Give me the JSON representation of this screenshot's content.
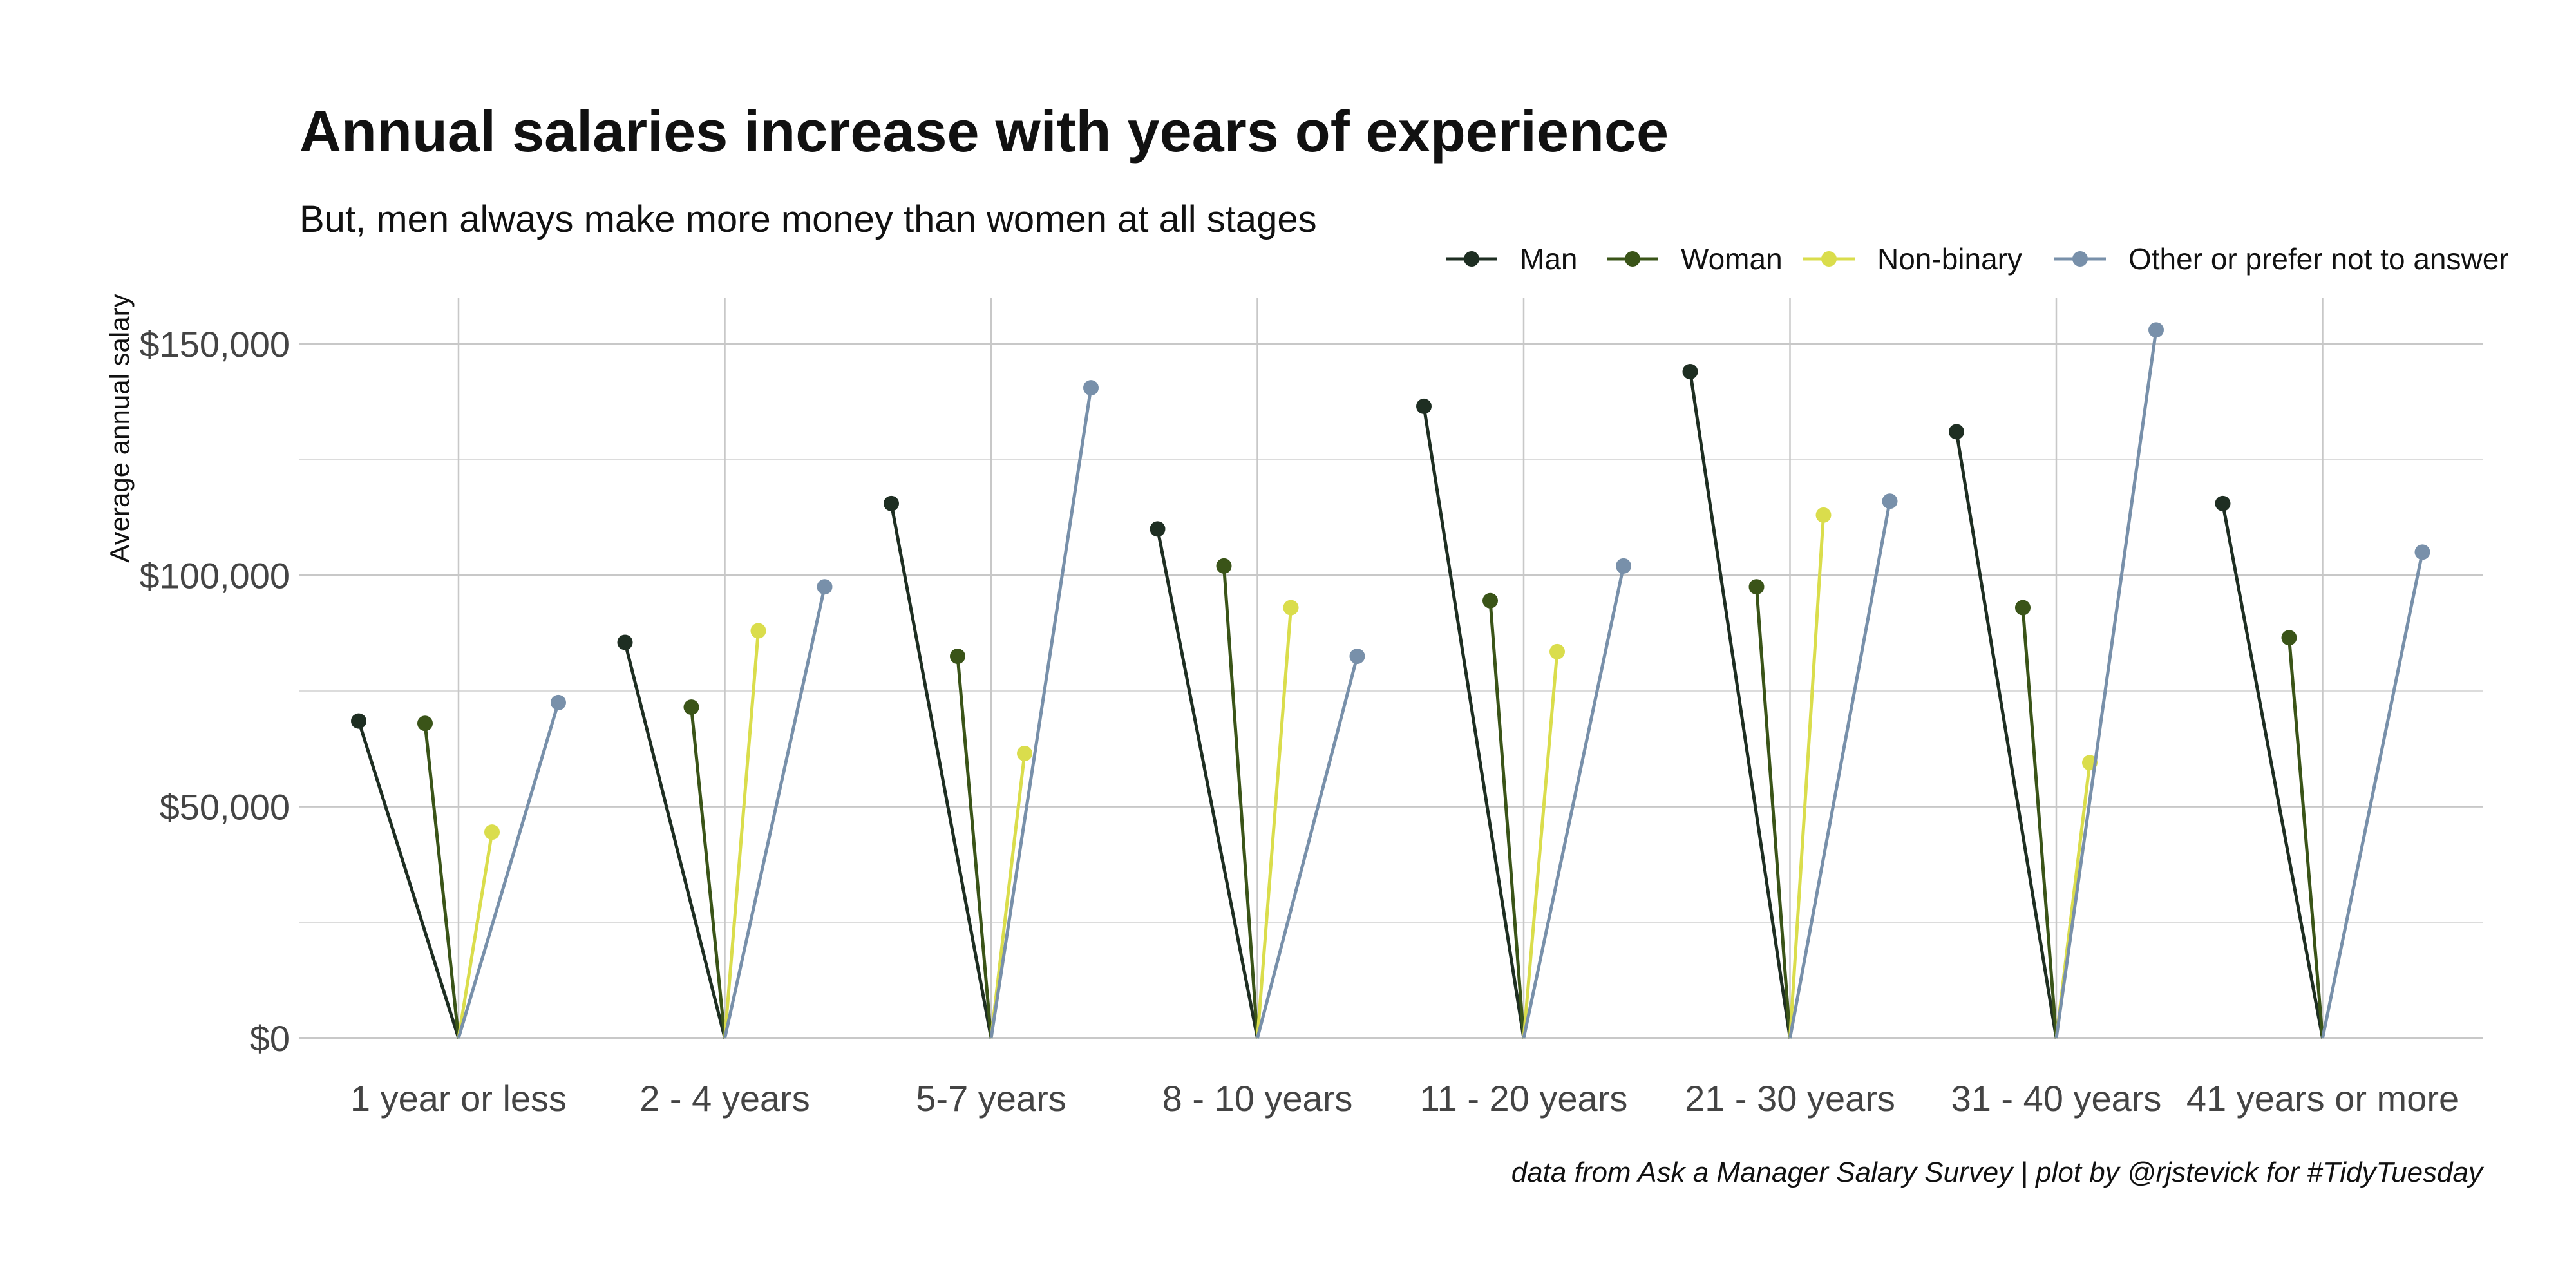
{
  "chart_data": {
    "type": "line",
    "title": "Annual salaries increase with years of experience",
    "subtitle": "But, men always make more money than women at all stages",
    "ylabel": "Average annual salary",
    "xlabel": "",
    "caption": "data from Ask a Manager Salary Survey | plot by @rjstevick for #TidyTuesday",
    "categories": [
      "1 year or less",
      "2 - 4 years",
      "5-7 years",
      "8 - 10 years",
      "11 - 20 years",
      "21 - 30 years",
      "31 - 40 years",
      "41 years or more"
    ],
    "ylim": [
      0,
      160000
    ],
    "yticks": [
      0,
      50000,
      100000,
      150000
    ],
    "ytick_labels": [
      "$0",
      "$50,000",
      "$100,000",
      "$150,000"
    ],
    "grid": true,
    "legend_position": "top-right",
    "series": [
      {
        "name": "Man",
        "color": "#1e2e22",
        "values": [
          68500,
          85500,
          115500,
          110000,
          136500,
          144000,
          131000,
          115500
        ]
      },
      {
        "name": "Woman",
        "color": "#3a5418",
        "values": [
          68000,
          71500,
          82500,
          102000,
          94500,
          97500,
          93000,
          86500
        ]
      },
      {
        "name": "Non-binary",
        "color": "#dadd4c",
        "values": [
          44500,
          88000,
          61500,
          93000,
          83500,
          113000,
          59500,
          null
        ]
      },
      {
        "name": "Other or prefer not to answer",
        "color": "#7890aa",
        "values": [
          72500,
          97500,
          140500,
          82500,
          102000,
          116000,
          153000,
          105000
        ]
      }
    ]
  }
}
